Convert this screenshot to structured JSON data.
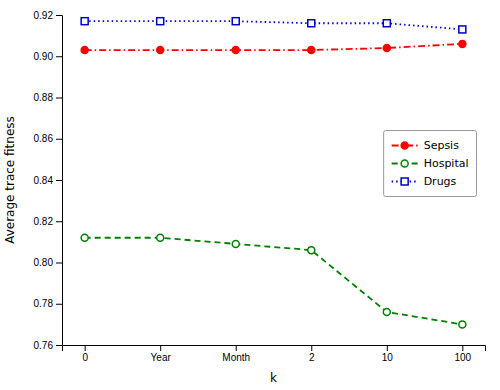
{
  "chart_data": {
    "type": "line",
    "xlabel": "k",
    "ylabel": "Average trace fitness",
    "categories": [
      "0",
      "Year",
      "Month",
      "2",
      "10",
      "100"
    ],
    "series": [
      {
        "name": "Sepsis",
        "color": "#FF0000",
        "marker": "circle",
        "line_style": "dashdot",
        "values": [
          0.903,
          0.903,
          0.903,
          0.903,
          0.904,
          0.906
        ]
      },
      {
        "name": "Hospital",
        "color": "#008000",
        "marker": "circle-open",
        "line_style": "dashed",
        "values": [
          0.812,
          0.812,
          0.809,
          0.806,
          0.776,
          0.77
        ]
      },
      {
        "name": "Drugs",
        "color": "#0000CD",
        "marker": "square-open",
        "line_style": "dotted",
        "values": [
          0.917,
          0.917,
          0.917,
          0.916,
          0.916,
          0.913
        ]
      }
    ],
    "ylim": [
      0.76,
      0.92
    ],
    "yticks": [
      0.76,
      0.78,
      {
        "value": 0.8,
        "label": "0.80"
      },
      0.82,
      0.84,
      0.86,
      0.88,
      {
        "value": 0.9,
        "label": "0.90"
      },
      0.92
    ],
    "grid": false,
    "legend": "center right"
  }
}
